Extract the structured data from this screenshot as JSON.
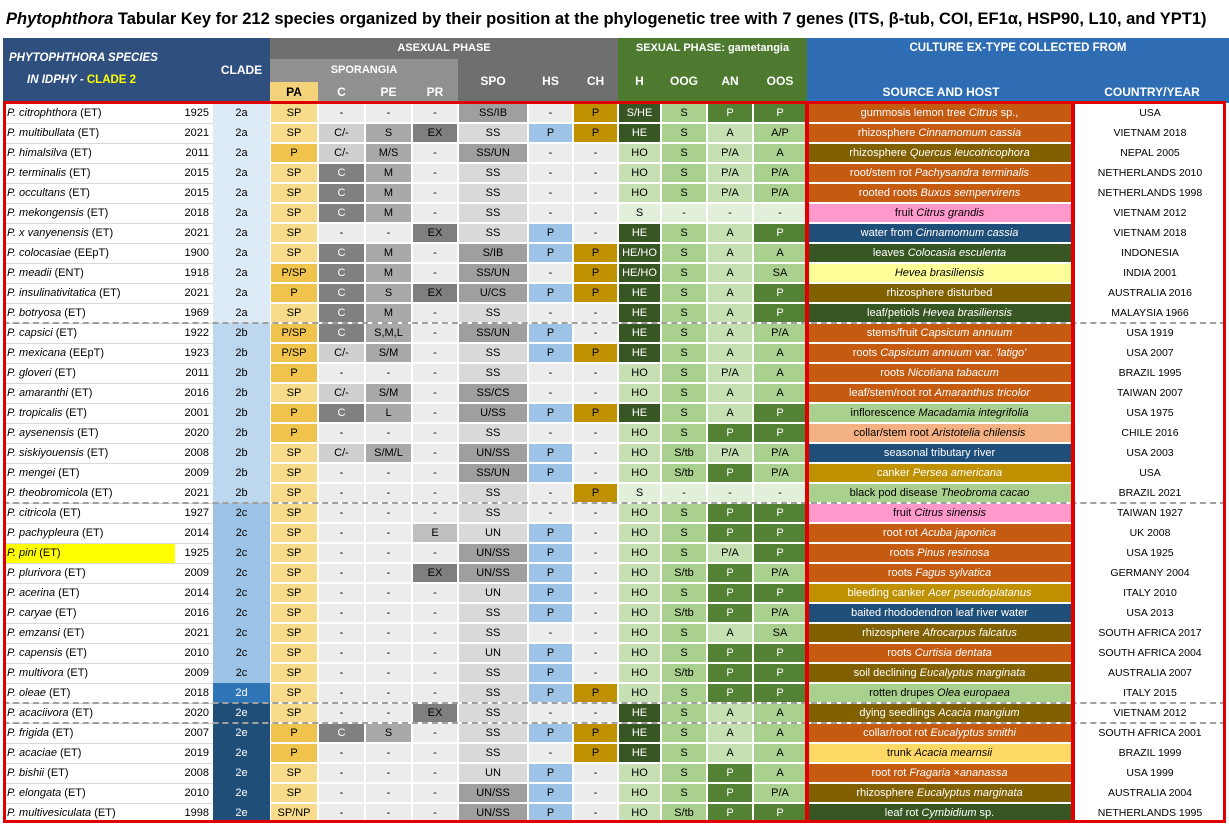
{
  "title": {
    "genus": "Phytophthora",
    "rest": " Tabular Key for 212 species organized by their position at the phylogenetic tree with 7 genes (ITS, β-tub, COI, EF1α, HSP90, L10, and YPT1)"
  },
  "header": {
    "species_1": "PHYTOPHTHORA SPECIES",
    "species_2a": "IN IDPHY - ",
    "species_2b": "CLADE 2",
    "clade": "CLADE",
    "asexual": "ASEXUAL PHASE",
    "sporangia": "SPORANGIA",
    "sexual": "SEXUAL PHASE: gametangia",
    "culture": "CULTURE EX-TYPE COLLECTED FROM",
    "source": "SOURCE AND HOST",
    "country": "COUNTRY/YEAR",
    "cols": {
      "pa": "PA",
      "c": "C",
      "pe": "PE",
      "pr": "PR",
      "spo": "SPO",
      "hs": "HS",
      "ch": "CH",
      "h": "H",
      "oog": "OOG",
      "an": "AN",
      "oos": "OOS"
    }
  },
  "colors": {
    "dark_header": "#2f4f7f",
    "header_gray": "#808080",
    "sexual_green": "#4e7a30",
    "culture_blue": "#2e6db4",
    "highlight_yellow": "#ffff00",
    "outline_red": "#e00000"
  },
  "rows": [
    {
      "name": "P. citrophthora",
      "tag": " (ET)",
      "year": "1925",
      "clade": "2a",
      "pa": "SP",
      "c": "-",
      "pe": "-",
      "pr": "-",
      "spo": "SS/IB",
      "hs": "-",
      "ch": "P",
      "h": "S/HE",
      "oog": "S",
      "an": "P",
      "oos": "P",
      "src": "gummosis lemon tree <i>Citrus</i> sp.,",
      "country": "USA"
    },
    {
      "name": "P. multibullata",
      "tag": " (ET)",
      "year": "2021",
      "clade": "2a",
      "pa": "SP",
      "c": "C/-",
      "pe": "S",
      "pr": "EX",
      "spo": "SS",
      "hs": "P",
      "ch": "P",
      "h": "HE",
      "oog": "S",
      "an": "A",
      "oos": "A/P",
      "src": "rhizosphere <i>Cinnamomum cassia</i>",
      "country": "VIETNAM 2018"
    },
    {
      "name": "P. himalsilva",
      "tag": " (ET)",
      "year": "2011",
      "clade": "2a",
      "pa": "P",
      "c": "C/-",
      "pe": "M/S",
      "pr": "-",
      "spo": "SS/UN",
      "hs": "-",
      "ch": "-",
      "h": "HO",
      "oog": "S",
      "an": "P/A",
      "oos": "A",
      "src": "rhizosphere <i>Quercus leucotricophora</i>",
      "country": "NEPAL 2005"
    },
    {
      "name": "P. terminalis",
      "tag": " (ET)",
      "year": "2015",
      "clade": "2a",
      "pa": "SP",
      "c": "C",
      "pe": "M",
      "pr": "-",
      "spo": "SS",
      "hs": "-",
      "ch": "-",
      "h": "HO",
      "oog": "S",
      "an": "P/A",
      "oos": "P/A",
      "src": "root/stem rot <i>Pachysandra terminalis</i>",
      "country": "NETHERLANDS 2010"
    },
    {
      "name": "P. occultans",
      "tag": " (ET)",
      "year": "2015",
      "clade": "2a",
      "pa": "SP",
      "c": "C",
      "pe": "M",
      "pr": "-",
      "spo": "SS",
      "hs": "-",
      "ch": "-",
      "h": "HO",
      "oog": "S",
      "an": "P/A",
      "oos": "P/A",
      "src": "rooted roots <i>Buxus sempervirens</i>",
      "country": "NETHERLANDS 1998"
    },
    {
      "name": "P. mekongensis",
      "tag": " (ET)",
      "year": "2018",
      "clade": "2a",
      "pa": "SP",
      "c": "C",
      "pe": "M",
      "pr": "-",
      "spo": "SS",
      "hs": "-",
      "ch": "-",
      "h": "S",
      "oog": "-",
      "an": "-",
      "oos": "-",
      "src": "fruit <i>Citrus grandis</i>",
      "country": "VIETNAM 2012"
    },
    {
      "name": "P. x vanyenensis",
      "tag": " (ET)",
      "year": "2021",
      "clade": "2a",
      "pa": "SP",
      "c": "-",
      "pe": "-",
      "pr": "EX",
      "spo": "SS",
      "hs": "P",
      "ch": "-",
      "h": "HE",
      "oog": "S",
      "an": "A",
      "oos": "P",
      "src": "water from <i>Cinnamomum cassia</i>",
      "country": "VIETNAM 2018"
    },
    {
      "name": "P. colocasiae",
      "tag": " (EEpT)",
      "year": "1900",
      "clade": "2a",
      "pa": "SP",
      "c": "C",
      "pe": "M",
      "pr": "-",
      "spo": "S/IB",
      "hs": "P",
      "ch": "P",
      "h": "HE/HO",
      "oog": "S",
      "an": "A",
      "oos": "A",
      "src": "leaves <i>Colocasia esculenta</i>",
      "country": "INDONESIA"
    },
    {
      "name": "P. meadii",
      "tag": " (ENT)",
      "year": "1918",
      "clade": "2a",
      "pa": "P/SP",
      "c": "C",
      "pe": "M",
      "pr": "-",
      "spo": "SS/UN",
      "hs": "-",
      "ch": "P",
      "h": "HE/HO",
      "oog": "S",
      "an": "A",
      "oos": "SA",
      "src": "<i>Hevea brasiliensis</i>",
      "country": "INDIA 2001"
    },
    {
      "name": "P. insulinativitatica",
      "tag": " (ET)",
      "year": "2021",
      "clade": "2a",
      "pa": "P",
      "c": "C",
      "pe": "S",
      "pr": "EX",
      "spo": "U/CS",
      "hs": "P",
      "ch": "P",
      "h": "HE",
      "oog": "S",
      "an": "A",
      "oos": "P",
      "src": "rhizosphere disturbed",
      "country": "AUSTRALIA 2016"
    },
    {
      "name": "P. botryosa",
      "tag": " (ET)",
      "year": "1969",
      "clade": "2a",
      "pa": "SP",
      "c": "C",
      "pe": "M",
      "pr": "-",
      "spo": "SS",
      "hs": "-",
      "ch": "-",
      "h": "HE",
      "oog": "S",
      "an": "A",
      "oos": "P",
      "src": "leaf/petiols <i>Hevea brasiliensis</i>",
      "country": "MALAYSIA 1966"
    },
    {
      "name": "P. capsici",
      "tag": " (ET)",
      "year": "1922",
      "clade": "2b",
      "pa": "P/SP",
      "c": "C",
      "pe": "S,M,L",
      "pr": "-",
      "spo": "SS/UN",
      "hs": "P",
      "ch": "-",
      "h": "HE",
      "oog": "S",
      "an": "A",
      "oos": "P/A",
      "src": "stems/fruit <i>Capsicum annuum</i>",
      "country": "USA 1919"
    },
    {
      "name": "P. mexicana",
      "tag": " (EEpT)",
      "year": "1923",
      "clade": "2b",
      "pa": "P/SP",
      "c": "C/-",
      "pe": "S/M",
      "pr": "-",
      "spo": "SS",
      "hs": "P",
      "ch": "P",
      "h": "HE",
      "oog": "S",
      "an": "A",
      "oos": "A",
      "src": "roots <i>Capsicum annuum</i> var. <i>'latigo'</i>",
      "country": "USA 2007"
    },
    {
      "name": "P. gloveri",
      "tag": " (ET)",
      "year": "2011",
      "clade": "2b",
      "pa": "P",
      "c": "-",
      "pe": "-",
      "pr": "-",
      "spo": "SS",
      "hs": "-",
      "ch": "-",
      "h": "HO",
      "oog": "S",
      "an": "P/A",
      "oos": "A",
      "src": "roots <i>Nicotiana tabacum</i>",
      "country": "BRAZIL 1995"
    },
    {
      "name": "P. amaranthi",
      "tag": " (ET)",
      "year": "2016",
      "clade": "2b",
      "pa": "SP",
      "c": "C/-",
      "pe": "S/M",
      "pr": "-",
      "spo": "SS/CS",
      "hs": "-",
      "ch": "-",
      "h": "HO",
      "oog": "S",
      "an": "A",
      "oos": "A",
      "src": "leaf/stem/root rot <i>Amaranthus tricolor</i>",
      "country": "TAIWAN 2007"
    },
    {
      "name": "P. tropicalis",
      "tag": " (ET)",
      "year": "2001",
      "clade": "2b",
      "pa": "P",
      "c": "C",
      "pe": "L",
      "pr": "-",
      "spo": "U/SS",
      "hs": "P",
      "ch": "P",
      "h": "HE",
      "oog": "S",
      "an": "A",
      "oos": "P",
      "src": "inflorescence <i>Macadamia integrifolia</i>",
      "country": "USA 1975"
    },
    {
      "name": "P. aysenensis",
      "tag": " (ET)",
      "year": "2020",
      "clade": "2b",
      "pa": "P",
      "c": "-",
      "pe": "-",
      "pr": "-",
      "spo": "SS",
      "hs": "-",
      "ch": "-",
      "h": "HO",
      "oog": "S",
      "an": "P",
      "oos": "P",
      "src": "collar/stem root <i>Aristotelia chilensis</i>",
      "country": "CHILE 2016"
    },
    {
      "name": "P. siskiyouensis",
      "tag": " (ET)",
      "year": "2008",
      "clade": "2b",
      "pa": "SP",
      "c": "C/-",
      "pe": "S/M/L",
      "pr": "-",
      "spo": "UN/SS",
      "hs": "P",
      "ch": "-",
      "h": "HO",
      "oog": "S/tb",
      "an": "P/A",
      "oos": "P/A",
      "src": "seasonal tributary river",
      "country": "USA 2003"
    },
    {
      "name": "P. mengei",
      "tag": " (ET)",
      "year": "2009",
      "clade": "2b",
      "pa": "SP",
      "c": "-",
      "pe": "-",
      "pr": "-",
      "spo": "SS/UN",
      "hs": "P",
      "ch": "-",
      "h": "HO",
      "oog": "S/tb",
      "an": "P",
      "oos": "P/A",
      "src": "canker <i>Persea americana</i>",
      "country": "USA"
    },
    {
      "name": "P. theobromicola",
      "tag": " (ET)",
      "year": "2021",
      "clade": "2b",
      "pa": "SP",
      "c": "-",
      "pe": "-",
      "pr": "-",
      "spo": "SS",
      "hs": "-",
      "ch": "P",
      "h": "S",
      "oog": "-",
      "an": "-",
      "oos": "-",
      "src": "black pod disease <i>Theobroma cacao</i>",
      "country": "BRAZIL 2021"
    },
    {
      "name": "P. citricola",
      "tag": " (ET)",
      "year": "1927",
      "clade": "2c",
      "pa": "SP",
      "c": "-",
      "pe": "-",
      "pr": "-",
      "spo": "SS",
      "hs": "-",
      "ch": "-",
      "h": "HO",
      "oog": "S",
      "an": "P",
      "oos": "P",
      "src": "fruit <i>Citrus sinensis</i>",
      "country": "TAIWAN 1927"
    },
    {
      "name": "P. pachypleura",
      "tag": " (ET)",
      "year": "2014",
      "clade": "2c",
      "pa": "SP",
      "c": "-",
      "pe": "-",
      "pr": "E",
      "spo": "UN",
      "hs": "P",
      "ch": "-",
      "h": "HO",
      "oog": "S",
      "an": "P",
      "oos": "P",
      "src": "root rot <i>Acuba japonica</i>",
      "country": "UK 2008"
    },
    {
      "name": "P. pini",
      "tag": " (ET)",
      "year": "1925",
      "clade": "2c",
      "pa": "SP",
      "c": "-",
      "pe": "-",
      "pr": "-",
      "spo": "UN/SS",
      "hs": "P",
      "ch": "-",
      "h": "HO",
      "oog": "S",
      "an": "P/A",
      "oos": "P",
      "src": "roots <i>Pinus resinosa</i>",
      "country": "USA 1925"
    },
    {
      "name": "P. plurivora",
      "tag": " (ET)",
      "year": "2009",
      "clade": "2c",
      "pa": "SP",
      "c": "-",
      "pe": "-",
      "pr": "EX",
      "spo": "UN/SS",
      "hs": "P",
      "ch": "-",
      "h": "HO",
      "oog": "S/tb",
      "an": "P",
      "oos": "P/A",
      "src": "roots <i>Fagus sylvatica</i>",
      "country": "GERMANY 2004"
    },
    {
      "name": "P. acerina",
      "tag": " (ET)",
      "year": "2014",
      "clade": "2c",
      "pa": "SP",
      "c": "-",
      "pe": "-",
      "pr": "-",
      "spo": "UN",
      "hs": "P",
      "ch": "-",
      "h": "HO",
      "oog": "S",
      "an": "P",
      "oos": "P",
      "src": "bleeding canker <i>Acer pseudoplatanus</i>",
      "country": "ITALY 2010"
    },
    {
      "name": "P. caryae",
      "tag": " (ET)",
      "year": "2016",
      "clade": "2c",
      "pa": "SP",
      "c": "-",
      "pe": "-",
      "pr": "-",
      "spo": "SS",
      "hs": "P",
      "ch": "-",
      "h": "HO",
      "oog": "S/tb",
      "an": "P",
      "oos": "P/A",
      "src": "baited rhododendron leaf river water",
      "country": "USA 2013"
    },
    {
      "name": "P. emzansi",
      "tag": " (ET)",
      "year": "2021",
      "clade": "2c",
      "pa": "SP",
      "c": "-",
      "pe": "-",
      "pr": "-",
      "spo": "SS",
      "hs": "-",
      "ch": "-",
      "h": "HO",
      "oog": "S",
      "an": "A",
      "oos": "SA",
      "src": "rhizosphere <i>Afrocarpus falcatus</i>",
      "country": "SOUTH AFRICA 2017"
    },
    {
      "name": "P. capensis",
      "tag": " (ET)",
      "year": "2010",
      "clade": "2c",
      "pa": "SP",
      "c": "-",
      "pe": "-",
      "pr": "-",
      "spo": "UN",
      "hs": "P",
      "ch": "-",
      "h": "HO",
      "oog": "S",
      "an": "P",
      "oos": "P",
      "src": "roots <i>Curtisia dentata</i>",
      "country": "SOUTH AFRICA 2004"
    },
    {
      "name": "P. multivora",
      "tag": " (ET)",
      "year": "2009",
      "clade": "2c",
      "pa": "SP",
      "c": "-",
      "pe": "-",
      "pr": "-",
      "spo": "SS",
      "hs": "P",
      "ch": "-",
      "h": "HO",
      "oog": "S/tb",
      "an": "P",
      "oos": "P",
      "src": "soil declining <i>Eucalyptus marginata</i>",
      "country": "AUSTRALIA 2007"
    },
    {
      "name": "P. oleae",
      "tag": " (ET)",
      "year": "2018",
      "clade": "2d",
      "pa": "SP",
      "c": "-",
      "pe": "-",
      "pr": "-",
      "spo": "SS",
      "hs": "P",
      "ch": "P",
      "h": "HO",
      "oog": "S",
      "an": "P",
      "oos": "P",
      "src": "rotten drupes <i>Olea europaea</i>",
      "country": "ITALY 2015"
    },
    {
      "name": "P. acaciivora",
      "tag": " (ET)",
      "year": "2020",
      "clade": "2e",
      "pa": "SP",
      "c": "-",
      "pe": "-",
      "pr": "EX",
      "spo": "SS",
      "hs": "-",
      "ch": "-",
      "h": "HE",
      "oog": "S",
      "an": "A",
      "oos": "A",
      "src": "dying seedlings <i>Acacia mangium</i>",
      "country": "VIETNAM 2012"
    },
    {
      "name": "P. frigida",
      "tag": " (ET)",
      "year": "2007",
      "clade": "2e",
      "pa": "P",
      "c": "C",
      "pe": "S",
      "pr": "-",
      "spo": "SS",
      "hs": "P",
      "ch": "P",
      "h": "HE",
      "oog": "S",
      "an": "A",
      "oos": "A",
      "src": "collar/root rot <i>Eucalyptus smithi</i>",
      "country": "SOUTH AFRICA 2001"
    },
    {
      "name": "P. acaciae",
      "tag": " (ET)",
      "year": "2019",
      "clade": "2e",
      "pa": "P",
      "c": "-",
      "pe": "-",
      "pr": "-",
      "spo": "SS",
      "hs": "-",
      "ch": "P",
      "h": "HE",
      "oog": "S",
      "an": "A",
      "oos": "A",
      "src": "trunk <i>Acacia mearnsii</i>",
      "country": "BRAZIL 1999"
    },
    {
      "name": "P. bishii",
      "tag": " (ET)",
      "year": "2008",
      "clade": "2e",
      "pa": "SP",
      "c": "-",
      "pe": "-",
      "pr": "-",
      "spo": "UN",
      "hs": "P",
      "ch": "-",
      "h": "HO",
      "oog": "S",
      "an": "P",
      "oos": "A",
      "src": "root rot <i>Fragaria ×ananassa</i>",
      "country": "USA 1999"
    },
    {
      "name": "P. elongata",
      "tag": " (ET)",
      "year": "2010",
      "clade": "2e",
      "pa": "SP",
      "c": "-",
      "pe": "-",
      "pr": "-",
      "spo": "UN/SS",
      "hs": "P",
      "ch": "-",
      "h": "HO",
      "oog": "S",
      "an": "P",
      "oos": "P/A",
      "src": "rhizosphere <i>Eucalyptus marginata</i>",
      "country": "AUSTRALIA 2004"
    },
    {
      "name": "P. multivesiculata",
      "tag": " (ET)",
      "year": "1998",
      "clade": "2e",
      "pa": "SP/NP",
      "c": "-",
      "pe": "-",
      "pr": "-",
      "spo": "UN/SS",
      "hs": "P",
      "ch": "-",
      "h": "HO",
      "oog": "S/tb",
      "an": "P",
      "oos": "P",
      "src": "leaf rot <i>Cymbidium</i> sp.",
      "country": "NETHERLANDS 1995"
    }
  ]
}
